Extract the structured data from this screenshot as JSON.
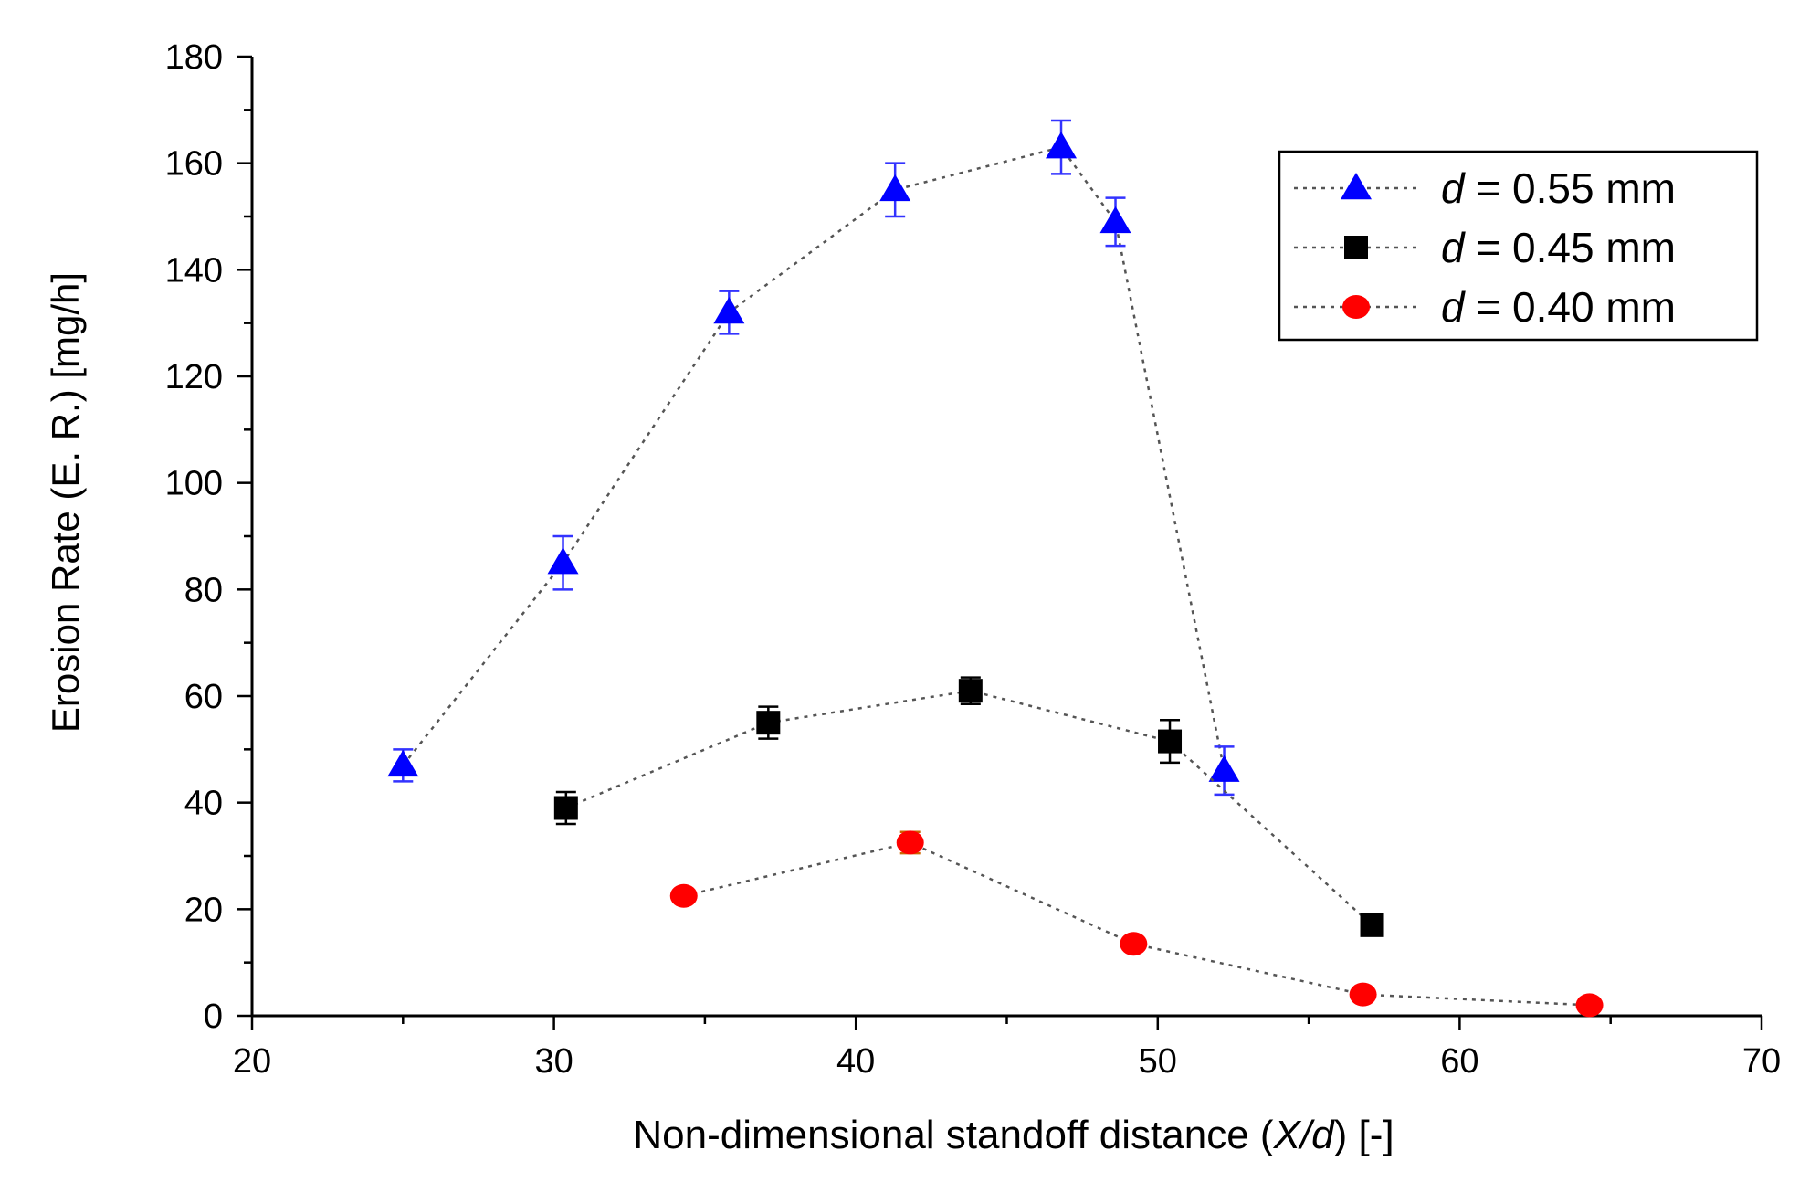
{
  "chart_data": {
    "type": "scatter",
    "xlabel": {
      "prefix": "Non-dimensional standoff distance (",
      "italic": "X/d",
      "suffix": ") [-]"
    },
    "ylabel": "Erosion Rate (E. R.) [mg/h]",
    "xlim": [
      20,
      70
    ],
    "ylim": [
      0,
      180
    ],
    "x_ticks": [
      20,
      30,
      40,
      50,
      60,
      70
    ],
    "y_ticks": [
      0,
      20,
      40,
      60,
      80,
      100,
      120,
      140,
      160,
      180
    ],
    "legend_position": "top-right",
    "grid": false,
    "series": [
      {
        "name_italic": "d",
        "name_rest": " = 0.55 mm",
        "marker": "triangle",
        "color": "#0000ff",
        "errorbar_color": "#3333ff",
        "points": [
          {
            "x": 25.0,
            "y": 47,
            "err": 3
          },
          {
            "x": 30.3,
            "y": 85,
            "err": 5
          },
          {
            "x": 35.8,
            "y": 132,
            "err": 4
          },
          {
            "x": 41.3,
            "y": 155,
            "err": 5
          },
          {
            "x": 46.8,
            "y": 163,
            "err": 5
          },
          {
            "x": 48.6,
            "y": 149,
            "err": 4.5
          },
          {
            "x": 52.2,
            "y": 46,
            "err": 4.5
          }
        ]
      },
      {
        "name_italic": "d",
        "name_rest": " = 0.45 mm",
        "marker": "square",
        "color": "#000000",
        "errorbar_color": "#000000",
        "points": [
          {
            "x": 30.4,
            "y": 39,
            "err": 3
          },
          {
            "x": 37.1,
            "y": 55,
            "err": 3
          },
          {
            "x": 43.8,
            "y": 61,
            "err": 2.5
          },
          {
            "x": 50.4,
            "y": 51.5,
            "err": 4
          },
          {
            "x": 57.1,
            "y": 17,
            "err": 0
          }
        ]
      },
      {
        "name_italic": "d",
        "name_rest": " = 0.40 mm",
        "marker": "circle",
        "color": "#ff0000",
        "errorbar_color": "#cc6600",
        "points": [
          {
            "x": 34.3,
            "y": 22.5,
            "err": 0
          },
          {
            "x": 41.8,
            "y": 32.5,
            "err": 2
          },
          {
            "x": 49.2,
            "y": 13.5,
            "err": 0
          },
          {
            "x": 56.8,
            "y": 4,
            "err": 0
          },
          {
            "x": 64.3,
            "y": 2,
            "err": 0
          }
        ]
      }
    ]
  }
}
